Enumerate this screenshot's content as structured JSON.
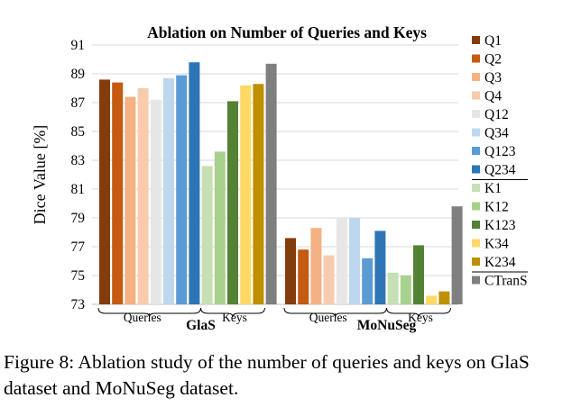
{
  "chart_data": {
    "type": "bar",
    "title": "Ablation on Number of Queries and Keys",
    "ylabel": "Dice Value [%]",
    "xlabel": "",
    "ylim": [
      73,
      91
    ],
    "yticks": [
      73,
      75,
      77,
      79,
      81,
      83,
      85,
      87,
      89,
      91
    ],
    "grid": true,
    "legend_position": "right",
    "datasets": [
      {
        "name": "GlaS",
        "query_group_label": "Queries",
        "key_group_label": "Keys"
      },
      {
        "name": "MoNuSeg",
        "query_group_label": "Queries",
        "key_group_label": "Keys"
      }
    ],
    "series": [
      {
        "name": "Q1",
        "color": "#843c0c",
        "values": [
          88.6,
          77.6
        ]
      },
      {
        "name": "Q2",
        "color": "#c55a11",
        "values": [
          88.4,
          76.8
        ]
      },
      {
        "name": "Q3",
        "color": "#f4b183",
        "values": [
          87.4,
          78.3
        ]
      },
      {
        "name": "Q4",
        "color": "#f8cbad",
        "values": [
          88.0,
          76.4
        ]
      },
      {
        "name": "Q12",
        "color": "#e7e6e6",
        "values": [
          87.2,
          79.0
        ]
      },
      {
        "name": "Q34",
        "color": "#bdd7ee",
        "values": [
          88.7,
          79.0
        ]
      },
      {
        "name": "Q123",
        "color": "#5b9bd5",
        "values": [
          88.9,
          76.2
        ]
      },
      {
        "name": "Q234",
        "color": "#2e75b6",
        "values": [
          89.8,
          78.1
        ]
      },
      {
        "name": "K1",
        "color": "#c5e0b4",
        "values": [
          82.6,
          75.2
        ]
      },
      {
        "name": "K12",
        "color": "#a9d18e",
        "values": [
          83.6,
          75.0
        ]
      },
      {
        "name": "K123",
        "color": "#548235",
        "values": [
          87.1,
          77.1
        ]
      },
      {
        "name": "K34",
        "color": "#ffd966",
        "values": [
          88.2,
          73.6
        ]
      },
      {
        "name": "K234",
        "color": "#bf9000",
        "values": [
          88.3,
          73.9
        ]
      },
      {
        "name": "CTranS",
        "color": "#7f7f7f",
        "values": [
          89.7,
          79.8
        ]
      }
    ],
    "legend_separators_after": [
      "Q234",
      "K234"
    ]
  },
  "caption": "Figure 8: Ablation study of the number of queries and keys on GlaS dataset and MoNuSeg dataset."
}
